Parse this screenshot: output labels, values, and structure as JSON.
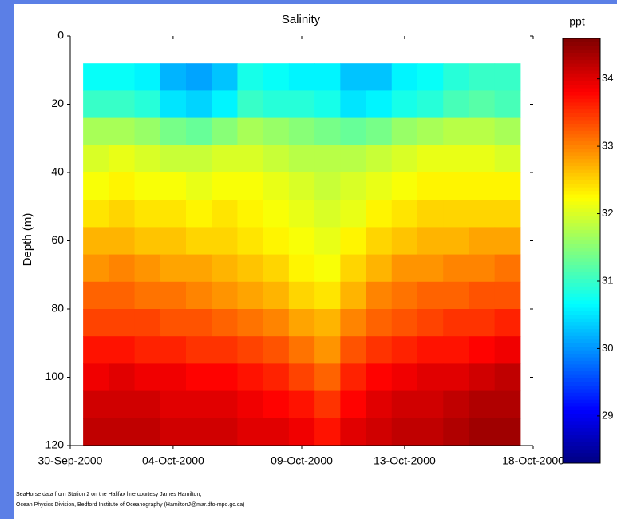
{
  "chart_data": {
    "type": "heatmap",
    "title": "Salinity",
    "ylabel": "Depth (m)",
    "colorbar_label": "ppt",
    "colormap": "jet",
    "x": [
      "01-Oct-2000",
      "02-Oct-2000",
      "03-Oct-2000",
      "04-Oct-2000",
      "05-Oct-2000",
      "06-Oct-2000",
      "07-Oct-2000",
      "08-Oct-2000",
      "09-Oct-2000",
      "10-Oct-2000",
      "11-Oct-2000",
      "12-Oct-2000",
      "13-Oct-2000",
      "14-Oct-2000",
      "15-Oct-2000",
      "16-Oct-2000",
      "17-Oct-2000"
    ],
    "y": [
      12,
      20,
      28,
      36,
      44,
      52,
      60,
      68,
      76,
      84,
      92,
      100,
      108,
      116
    ],
    "z": [
      [
        30.7,
        30.7,
        30.6,
        30.2,
        30.1,
        30.3,
        30.8,
        30.7,
        30.6,
        30.6,
        30.3,
        30.3,
        30.6,
        30.7,
        30.9,
        31.0,
        31.0
      ],
      [
        31.0,
        31.0,
        30.9,
        30.5,
        30.4,
        30.6,
        31.0,
        30.9,
        30.9,
        30.8,
        30.5,
        30.6,
        30.8,
        30.9,
        31.1,
        31.2,
        31.1
      ],
      [
        31.7,
        31.7,
        31.6,
        31.4,
        31.3,
        31.5,
        31.7,
        31.6,
        31.5,
        31.4,
        31.3,
        31.4,
        31.6,
        31.7,
        31.8,
        31.8,
        31.7
      ],
      [
        32.0,
        32.1,
        32.0,
        31.9,
        31.9,
        32.0,
        32.0,
        31.9,
        31.8,
        31.8,
        31.8,
        31.9,
        32.0,
        32.1,
        32.1,
        32.1,
        32.0
      ],
      [
        32.2,
        32.3,
        32.2,
        32.2,
        32.1,
        32.2,
        32.2,
        32.1,
        32.0,
        31.9,
        32.0,
        32.1,
        32.2,
        32.3,
        32.3,
        32.3,
        32.3
      ],
      [
        32.4,
        32.5,
        32.4,
        32.4,
        32.3,
        32.4,
        32.3,
        32.2,
        32.1,
        32.0,
        32.1,
        32.3,
        32.4,
        32.5,
        32.5,
        32.5,
        32.5
      ],
      [
        32.7,
        32.7,
        32.6,
        32.6,
        32.5,
        32.5,
        32.4,
        32.3,
        32.2,
        32.1,
        32.3,
        32.5,
        32.6,
        32.7,
        32.7,
        32.8,
        32.8
      ],
      [
        32.9,
        33.0,
        32.9,
        32.8,
        32.8,
        32.7,
        32.6,
        32.5,
        32.3,
        32.2,
        32.5,
        32.7,
        32.9,
        32.9,
        33.0,
        33.0,
        33.1
      ],
      [
        33.2,
        33.2,
        33.1,
        33.1,
        33.0,
        32.9,
        32.8,
        32.7,
        32.5,
        32.4,
        32.7,
        33.0,
        33.1,
        33.2,
        33.2,
        33.3,
        33.3
      ],
      [
        33.4,
        33.4,
        33.4,
        33.3,
        33.3,
        33.2,
        33.1,
        33.0,
        32.8,
        32.7,
        33.0,
        33.2,
        33.3,
        33.4,
        33.5,
        33.5,
        33.6
      ],
      [
        33.7,
        33.7,
        33.6,
        33.6,
        33.5,
        33.5,
        33.4,
        33.3,
        33.1,
        32.9,
        33.3,
        33.5,
        33.6,
        33.7,
        33.7,
        33.8,
        33.9
      ],
      [
        33.9,
        34.0,
        33.9,
        33.9,
        33.8,
        33.8,
        33.7,
        33.6,
        33.4,
        33.2,
        33.6,
        33.8,
        33.9,
        34.0,
        34.0,
        34.1,
        34.2
      ],
      [
        34.1,
        34.1,
        34.1,
        34.0,
        34.0,
        34.0,
        33.9,
        33.8,
        33.7,
        33.5,
        33.8,
        34.0,
        34.1,
        34.1,
        34.2,
        34.3,
        34.3
      ],
      [
        34.2,
        34.2,
        34.2,
        34.1,
        34.1,
        34.1,
        34.0,
        34.0,
        33.9,
        33.7,
        34.0,
        34.1,
        34.2,
        34.2,
        34.3,
        34.4,
        34.4
      ]
    ],
    "xlim": [
      "30-Sep-2000",
      "18-Oct-2000"
    ],
    "xticks": [
      "30-Sep-2000",
      "04-Oct-2000",
      "09-Oct-2000",
      "13-Oct-2000",
      "18-Oct-2000"
    ],
    "ylim": [
      0,
      120
    ],
    "yticks": [
      0,
      20,
      40,
      60,
      80,
      100,
      120
    ],
    "zlim": [
      28.3,
      34.6
    ],
    "zticks": [
      29,
      30,
      31,
      32,
      33,
      34
    ],
    "notes": [
      "SeaHorse data from Station 2 on the Halifax line courtesy James Hamilton,",
      "Ocean Physics Division, Bedford Institute of Oceanography (HamiltonJ@mar.dfo-mpo.gc.ca)"
    ]
  }
}
